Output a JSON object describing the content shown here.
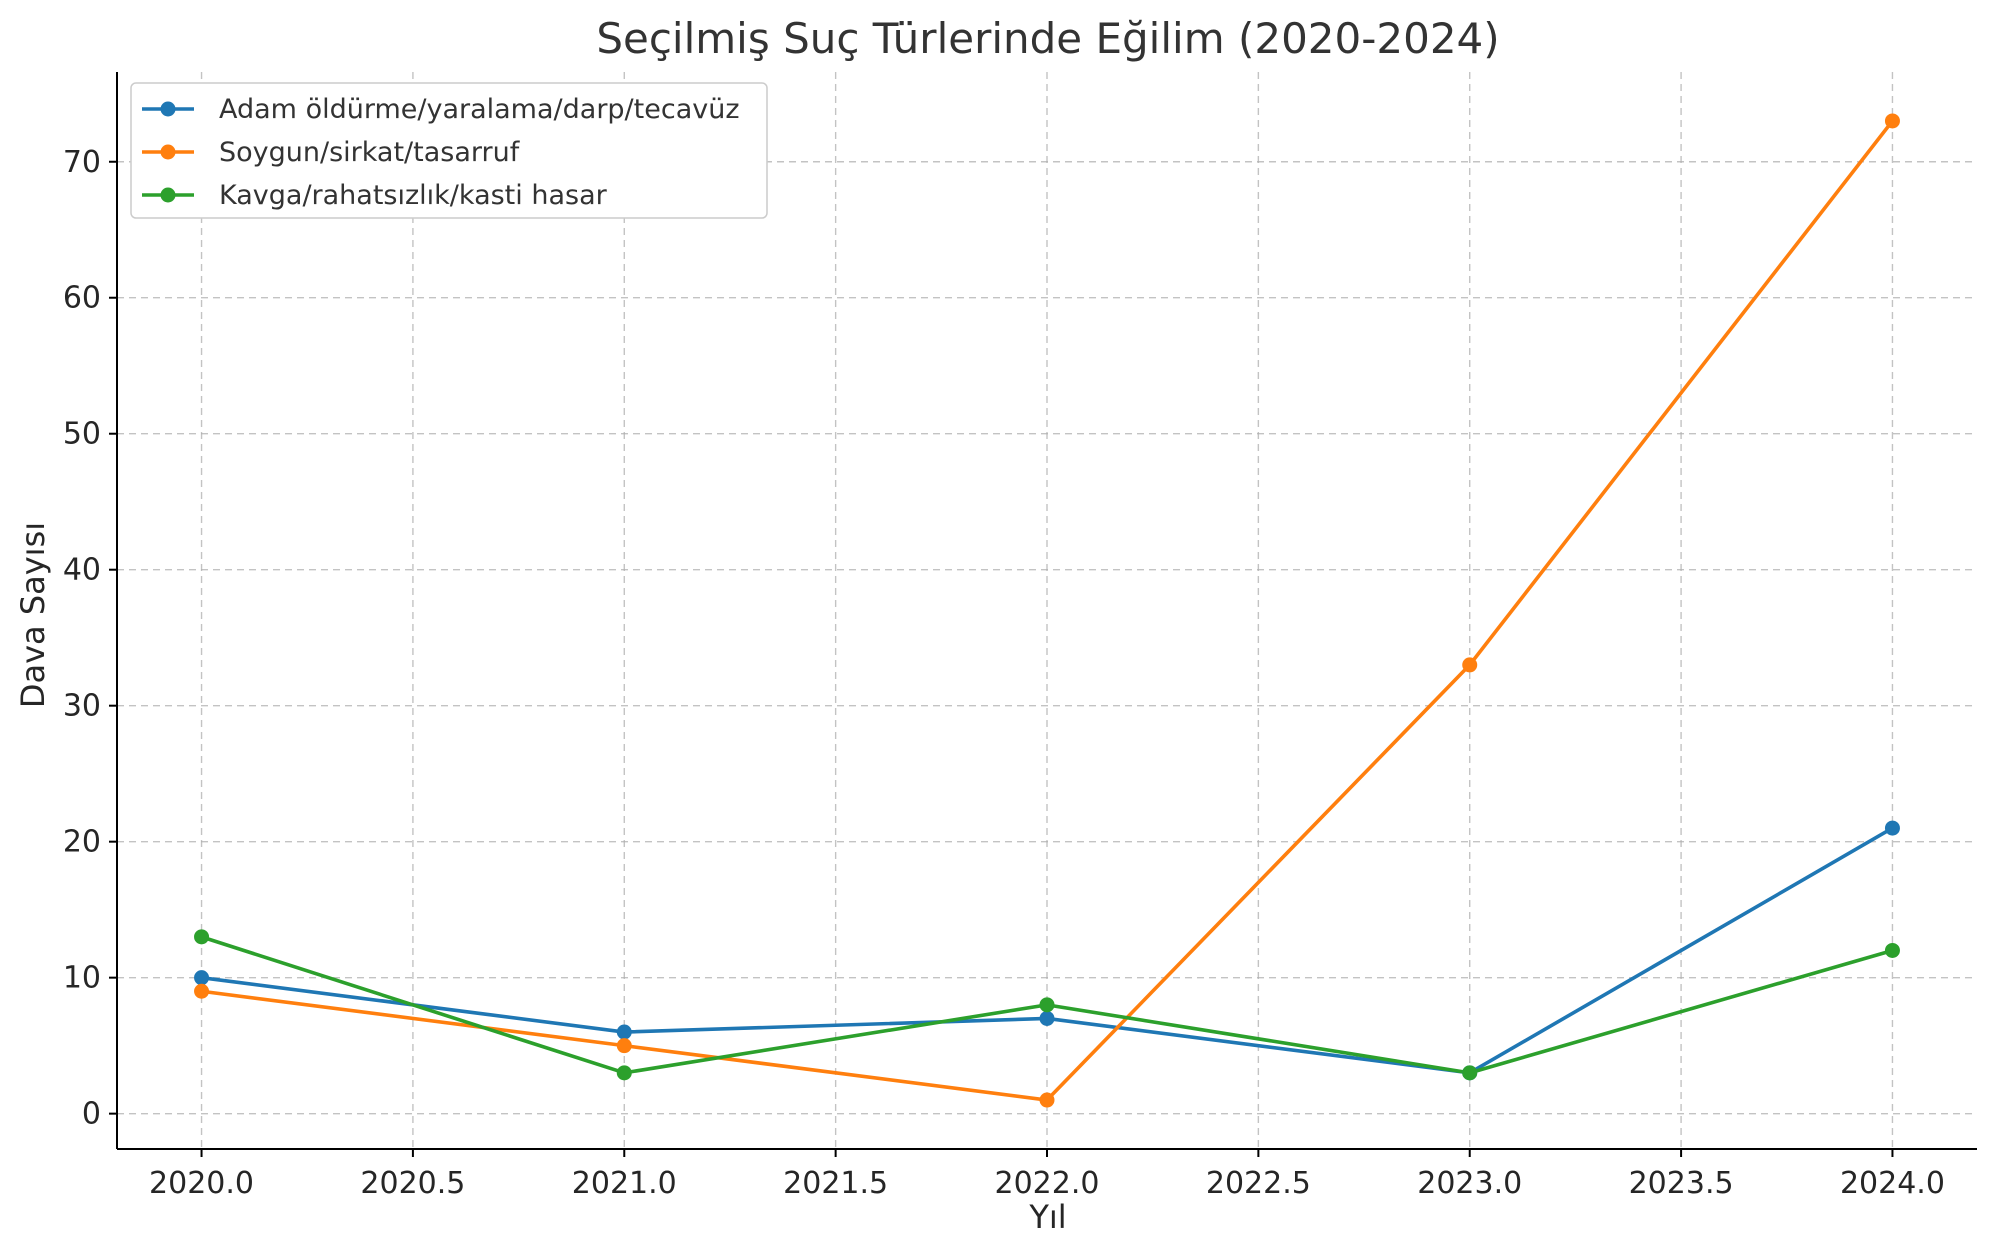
{
  "chart_data": {
    "type": "line",
    "title": "Seçilmiş Suç Türlerinde Eğilim (2020-2024)",
    "xlabel": "Yıl",
    "ylabel": "Dava Sayısı",
    "x": [
      2020,
      2021,
      2022,
      2023,
      2024
    ],
    "xlim": [
      2019.8,
      2024.2
    ],
    "ylim": [
      -2.6,
      76.6
    ],
    "xticks": [
      2020.0,
      2020.5,
      2021.0,
      2021.5,
      2022.0,
      2022.5,
      2023.0,
      2023.5,
      2024.0
    ],
    "xtick_labels": [
      "2020.0",
      "2020.5",
      "2021.0",
      "2021.5",
      "2022.0",
      "2022.5",
      "2023.0",
      "2023.5",
      "2024.0"
    ],
    "yticks": [
      0,
      10,
      20,
      30,
      40,
      50,
      60,
      70
    ],
    "ytick_labels": [
      "0",
      "10",
      "20",
      "30",
      "40",
      "50",
      "60",
      "70"
    ],
    "grid": true,
    "legend_position": "top-left",
    "series": [
      {
        "name": "Adam öldürme/yaralama/darp/tecavüz",
        "color": "#1f77b4",
        "values": [
          10,
          6,
          7,
          3,
          21
        ]
      },
      {
        "name": "Soygun/sirkat/tasarruf",
        "color": "#ff7f0e",
        "values": [
          9,
          5,
          1,
          33,
          73
        ]
      },
      {
        "name": "Kavga/rahatsızlık/kasti hasar",
        "color": "#2ca02c",
        "values": [
          13,
          3,
          8,
          3,
          12
        ]
      }
    ]
  }
}
